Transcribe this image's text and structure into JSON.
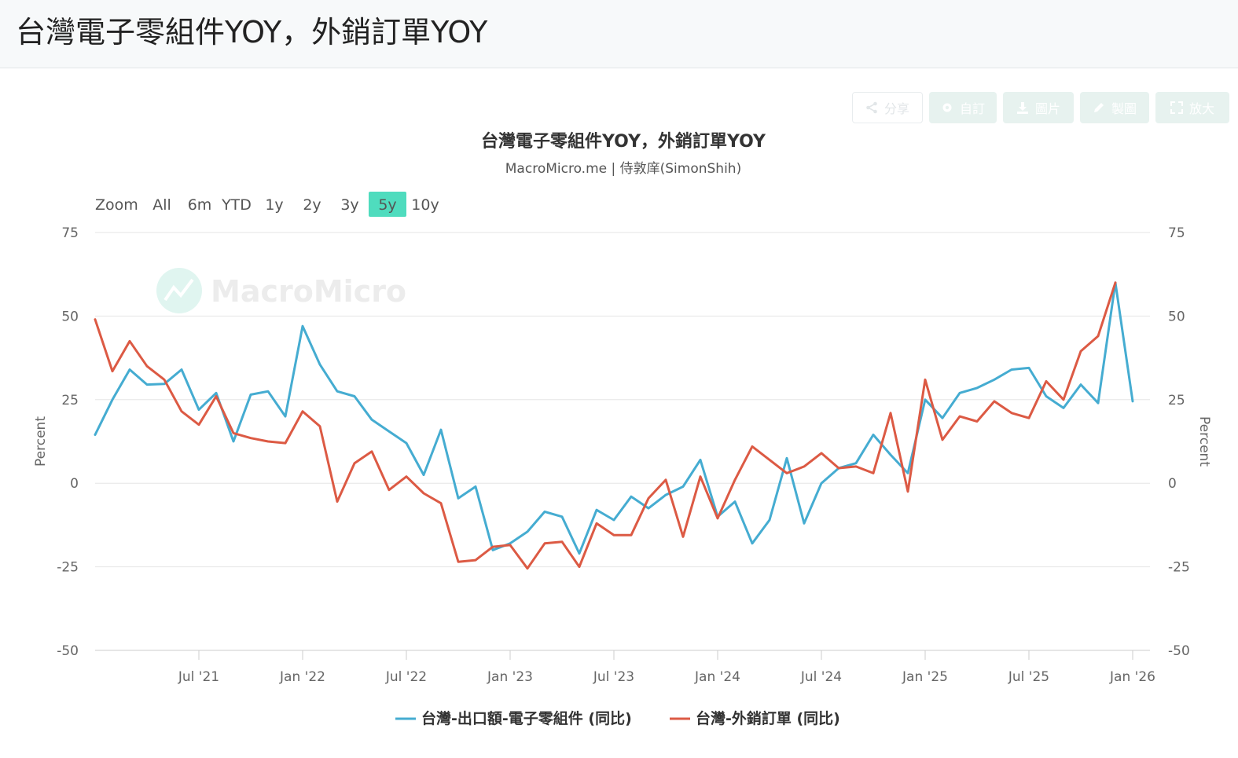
{
  "page": {
    "title": "台灣電子零組件YOY，外銷訂單YOY"
  },
  "toolbar": {
    "share": "分享",
    "custom": "自訂",
    "image": "圖片",
    "edit": "製圖",
    "zoom": "放大"
  },
  "range_selector": {
    "label": "Zoom",
    "buttons": [
      "All",
      "6m",
      "YTD",
      "1y",
      "2y",
      "3y",
      "5y",
      "10y"
    ],
    "selected": "5y"
  },
  "watermark": "MacroMicro",
  "colors": {
    "series1": "#45acd1",
    "series2": "#dc5a44",
    "selected_range": "#4fdcbe"
  },
  "chart_data": {
    "type": "line",
    "title": "台灣電子零組件YOY，外銷訂單YOY",
    "subtitle": "MacroMicro.me | 侍敦庠(SimonShih)",
    "ylabel": "Percent",
    "y2label": "Percent",
    "ylim": [
      -50,
      75
    ],
    "yticks": [
      75,
      50,
      25,
      0,
      -25,
      -50
    ],
    "xlim": [
      "2021-01",
      "2026-01"
    ],
    "xticks": [
      "Jul '21",
      "Jan '22",
      "Jul '22",
      "Jan '23",
      "Jul '23",
      "Jan '24",
      "Jul '24",
      "Jan '25",
      "Jul '25",
      "Jan '26"
    ],
    "xtick_dates": [
      "2021-07",
      "2022-01",
      "2022-07",
      "2023-01",
      "2023-07",
      "2024-01",
      "2024-07",
      "2025-01",
      "2025-07",
      "2026-01"
    ],
    "grid": true,
    "legend": "bottom-center",
    "x": [
      "2021-01",
      "2021-02",
      "2021-03",
      "2021-04",
      "2021-05",
      "2021-06",
      "2021-07",
      "2021-08",
      "2021-09",
      "2021-10",
      "2021-11",
      "2021-12",
      "2022-01",
      "2022-02",
      "2022-03",
      "2022-04",
      "2022-05",
      "2022-06",
      "2022-07",
      "2022-08",
      "2022-09",
      "2022-10",
      "2022-11",
      "2022-12",
      "2023-01",
      "2023-02",
      "2023-03",
      "2023-04",
      "2023-05",
      "2023-06",
      "2023-07",
      "2023-08",
      "2023-09",
      "2023-10",
      "2023-11",
      "2023-12",
      "2024-01",
      "2024-02",
      "2024-03",
      "2024-04",
      "2024-05",
      "2024-06",
      "2024-07",
      "2024-08",
      "2024-09",
      "2024-10",
      "2024-11",
      "2024-12",
      "2025-01",
      "2025-02",
      "2025-03",
      "2025-04",
      "2025-05",
      "2025-06",
      "2025-07",
      "2025-08",
      "2025-09",
      "2025-10",
      "2025-11",
      "2025-12",
      "2026-01"
    ],
    "series": [
      {
        "name": "台灣-出口額-電子零組件 (同比)",
        "values": [
          14.5,
          25,
          34,
          29.5,
          29.7,
          34,
          22,
          27,
          12.5,
          26.5,
          27.5,
          20,
          47,
          35.5,
          27.5,
          26,
          19,
          15.5,
          12,
          2.5,
          16,
          -4.5,
          -1,
          -20,
          -18,
          -14.5,
          -8.5,
          -10,
          -21,
          -8,
          -11,
          -4,
          -7.5,
          -3.5,
          -1,
          7,
          -10,
          -5.5,
          -18,
          -11,
          7.5,
          -12,
          0,
          4.5,
          6,
          14.5,
          8.5,
          3,
          25,
          19.5,
          27,
          28.5,
          31,
          34,
          34.5,
          26,
          22.5,
          29.5,
          24,
          60,
          24.5
        ]
      },
      {
        "name": "台灣-外銷訂單 (同比)",
        "values": [
          49,
          33.5,
          42.5,
          35,
          31,
          21.5,
          17.5,
          26,
          15,
          13.5,
          12.5,
          12,
          21.5,
          17,
          -5.5,
          6,
          9.5,
          -2,
          2,
          -3,
          -6,
          -23.5,
          -23,
          -19,
          -18.5,
          -25.5,
          -18,
          -17.5,
          -25,
          -12,
          -15.5,
          -15.5,
          -4.5,
          1,
          -16,
          2,
          -10.5,
          1,
          11,
          7,
          3,
          5,
          9,
          4.5,
          5,
          3,
          21,
          -2.5,
          31,
          13,
          20,
          18.5,
          24.5,
          21,
          19.5,
          30.5,
          25,
          39.5,
          44,
          60,
          null
        ]
      }
    ]
  }
}
